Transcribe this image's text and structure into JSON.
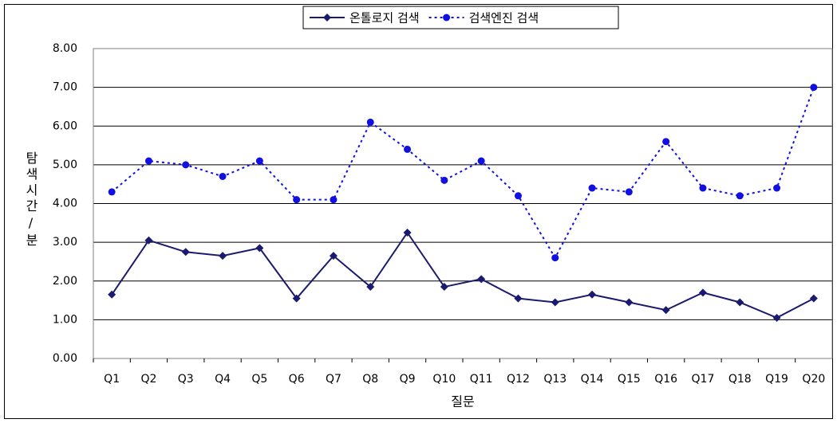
{
  "chart_data": {
    "type": "line",
    "x_label": "질문",
    "y_label": "탐색시간/분",
    "categories": [
      "Q1",
      "Q2",
      "Q3",
      "Q4",
      "Q5",
      "Q6",
      "Q7",
      "Q8",
      "Q9",
      "Q10",
      "Q11",
      "Q12",
      "Q13",
      "Q14",
      "Q15",
      "Q16",
      "Q17",
      "Q18",
      "Q19",
      "Q20"
    ],
    "series": [
      {
        "name": "온톨로지 검색",
        "color": "#1a1a6e",
        "line_style": "solid",
        "marker": "diamond",
        "values": [
          1.65,
          3.05,
          2.75,
          2.65,
          2.85,
          1.55,
          2.65,
          1.85,
          3.25,
          1.85,
          2.05,
          1.55,
          1.45,
          1.65,
          1.45,
          1.25,
          1.7,
          1.45,
          1.05,
          1.55
        ]
      },
      {
        "name": "검색엔진 검색",
        "color": "#1010e0",
        "line_style": "dotted",
        "marker": "circle",
        "values": [
          4.3,
          5.1,
          5.0,
          4.7,
          5.1,
          4.1,
          4.1,
          6.1,
          5.4,
          4.6,
          5.1,
          4.2,
          2.6,
          4.4,
          4.3,
          5.6,
          4.4,
          4.2,
          4.4,
          7.0
        ]
      }
    ],
    "ylim": [
      0,
      8
    ],
    "yticks": [
      {
        "value": 0,
        "label": "0.00"
      },
      {
        "value": 1,
        "label": "1.00"
      },
      {
        "value": 2,
        "label": "2.00"
      },
      {
        "value": 3,
        "label": "3.00"
      },
      {
        "value": 4,
        "label": "4.00"
      },
      {
        "value": 5,
        "label": "5.00"
      },
      {
        "value": 6,
        "label": "6.00"
      },
      {
        "value": 7,
        "label": "7.00"
      },
      {
        "value": 8,
        "label": "8.00"
      }
    ],
    "grid": true,
    "legend": "top"
  }
}
